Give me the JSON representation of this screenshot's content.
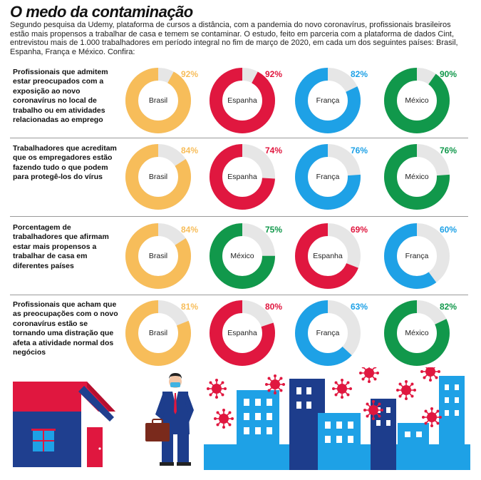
{
  "title": "O medo da contaminação",
  "intro": "Segundo pesquisa da Udemy, plataforma de cursos a distância, com a pandemia do novo coronavírus, profissionais brasileiros estão mais propensos a trabalhar de casa e temem se contaminar. O estudo, feito em parceria com a plataforma de dados Cint, entrevistou mais de 1.000 trabalhadores em período integral no fim de março de 2020, em cada um dos seguintes países: Brasil, Espanha, França e México. Confira:",
  "colors": {
    "Brasil": "#f7bd5a",
    "Espanha": "#e0173f",
    "França": "#1ea1e6",
    "México": "#11984b",
    "track": "#e6e6e6"
  },
  "chart_data": [
    {
      "type": "pie",
      "title": "Profissionais que admitem estar preocupados com a exposição ao novo coronavírus no local de trabalho ou em atividades relacionadas ao emprego",
      "categories": [
        "Brasil",
        "Espanha",
        "França",
        "México"
      ],
      "values": [
        92,
        92,
        82,
        90
      ],
      "labels": [
        "92%",
        "92%",
        "82%",
        "90%"
      ],
      "unit": "%"
    },
    {
      "type": "pie",
      "title": "Trabalhadores que acreditam que os empregadores estão fazendo tudo o que podem para protegê-los do vírus",
      "categories": [
        "Brasil",
        "Espanha",
        "França",
        "México"
      ],
      "values": [
        84,
        74,
        76,
        76
      ],
      "labels": [
        "84%",
        "74%",
        "76%",
        "76%"
      ],
      "unit": "%"
    },
    {
      "type": "pie",
      "title": "Porcentagem de trabalhadores que afirmam estar mais propensos a trabalhar de casa em diferentes países",
      "categories": [
        "Brasil",
        "México",
        "Espanha",
        "França"
      ],
      "values": [
        84,
        75,
        69,
        60
      ],
      "labels": [
        "84%",
        "75%",
        "69%",
        "60%"
      ],
      "unit": "%"
    },
    {
      "type": "pie",
      "title": "Profissionais que acham que as preocupações com o novo coronavírus estão se tornando uma distração que afeta a atividade normal dos negócios",
      "categories": [
        "Brasil",
        "Espanha",
        "França",
        "México"
      ],
      "values": [
        81,
        80,
        63,
        82
      ],
      "labels": [
        "81%",
        "80%",
        "63%",
        "82%"
      ],
      "unit": "%"
    }
  ]
}
